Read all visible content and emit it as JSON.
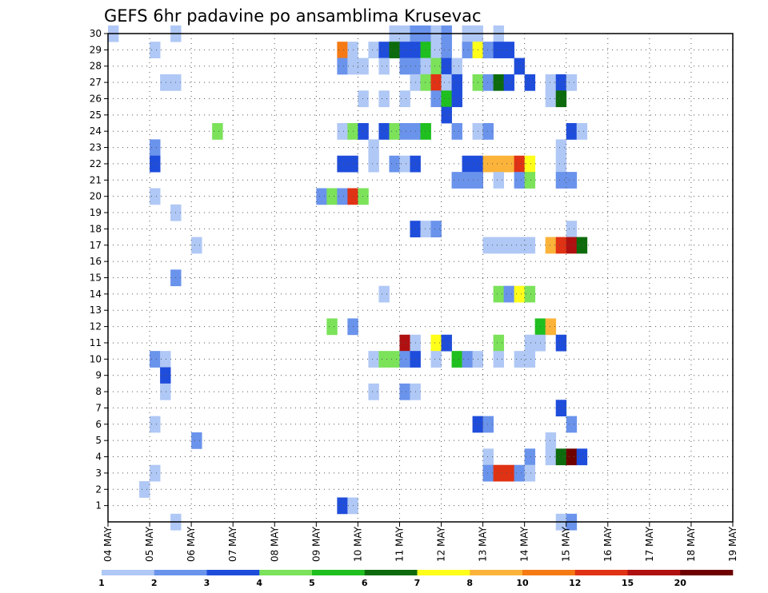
{
  "chart_data": {
    "type": "heatmap",
    "title": "GEFS 6hr padavine po ansamblima Krusevac",
    "x_start": "04 MAY 00Z",
    "x_end": "19 MAY 00Z",
    "x_step_hours": 6,
    "x_tick_labels": [
      "04 MAY",
      "05 MAY",
      "06 MAY",
      "07 MAY",
      "08 MAY",
      "09 MAY",
      "10 MAY",
      "11 MAY",
      "12 MAY",
      "13 MAY",
      "14 MAY",
      "15 MAY",
      "16 MAY",
      "17 MAY",
      "18 MAY",
      "19 MAY"
    ],
    "y_ticks": [
      1,
      2,
      3,
      4,
      5,
      6,
      7,
      8,
      9,
      10,
      11,
      12,
      13,
      14,
      15,
      16,
      17,
      18,
      19,
      20,
      21,
      22,
      23,
      24,
      25,
      26,
      27,
      28,
      29,
      30
    ],
    "ylim": [
      0,
      30
    ],
    "grid": true,
    "colorbar": {
      "labels": [
        "1",
        "2",
        "3",
        "4",
        "5",
        "6",
        "7",
        "8",
        "10",
        "12",
        "15",
        "20"
      ],
      "colors": [
        "#b0c8f5",
        "#6a93ec",
        "#1f4ddb",
        "#7be25a",
        "#1fbf1f",
        "#0d6b0d",
        "#ffff1a",
        "#fbb33a",
        "#f57a14",
        "#e03214",
        "#b01010",
        "#6e0000"
      ]
    },
    "cells": [
      [
        30,
        0,
        0
      ],
      [
        30,
        6,
        0
      ],
      [
        30,
        27,
        0
      ],
      [
        30,
        28,
        0
      ],
      [
        30,
        29,
        1
      ],
      [
        30,
        30,
        1
      ],
      [
        30,
        31,
        0
      ],
      [
        30,
        32,
        1
      ],
      [
        30,
        34,
        0
      ],
      [
        30,
        35,
        0
      ],
      [
        30,
        37,
        0
      ],
      [
        29,
        4,
        0
      ],
      [
        29,
        22,
        8
      ],
      [
        29,
        23,
        0
      ],
      [
        29,
        25,
        0
      ],
      [
        29,
        26,
        2
      ],
      [
        29,
        27,
        5
      ],
      [
        29,
        28,
        2
      ],
      [
        29,
        29,
        2
      ],
      [
        29,
        30,
        4
      ],
      [
        29,
        31,
        0
      ],
      [
        29,
        32,
        1
      ],
      [
        29,
        34,
        1
      ],
      [
        29,
        35,
        6
      ],
      [
        29,
        36,
        1
      ],
      [
        29,
        37,
        2
      ],
      [
        29,
        38,
        2
      ],
      [
        28,
        22,
        1
      ],
      [
        28,
        23,
        0
      ],
      [
        28,
        24,
        0
      ],
      [
        28,
        26,
        0
      ],
      [
        28,
        28,
        1
      ],
      [
        28,
        29,
        1
      ],
      [
        28,
        30,
        0
      ],
      [
        28,
        31,
        3
      ],
      [
        28,
        32,
        2
      ],
      [
        28,
        33,
        0
      ],
      [
        28,
        39,
        2
      ],
      [
        27,
        5,
        0
      ],
      [
        27,
        6,
        0
      ],
      [
        27,
        29,
        0
      ],
      [
        27,
        30,
        3
      ],
      [
        27,
        31,
        9
      ],
      [
        27,
        32,
        0
      ],
      [
        27,
        33,
        2
      ],
      [
        27,
        35,
        3
      ],
      [
        27,
        36,
        1
      ],
      [
        27,
        37,
        5
      ],
      [
        27,
        38,
        2
      ],
      [
        27,
        40,
        2
      ],
      [
        27,
        42,
        0
      ],
      [
        27,
        43,
        2
      ],
      [
        27,
        44,
        0
      ],
      [
        26,
        24,
        0
      ],
      [
        26,
        26,
        0
      ],
      [
        26,
        28,
        0
      ],
      [
        26,
        31,
        1
      ],
      [
        26,
        32,
        4
      ],
      [
        26,
        33,
        2
      ],
      [
        26,
        42,
        0
      ],
      [
        26,
        43,
        5
      ],
      [
        25,
        32,
        2
      ],
      [
        24,
        10,
        3
      ],
      [
        24,
        22,
        0
      ],
      [
        24,
        23,
        3
      ],
      [
        24,
        24,
        2
      ],
      [
        24,
        26,
        2
      ],
      [
        24,
        27,
        3
      ],
      [
        24,
        28,
        1
      ],
      [
        24,
        29,
        1
      ],
      [
        24,
        30,
        4
      ],
      [
        24,
        33,
        1
      ],
      [
        24,
        35,
        0
      ],
      [
        24,
        36,
        1
      ],
      [
        24,
        44,
        2
      ],
      [
        24,
        45,
        0
      ],
      [
        23,
        4,
        1
      ],
      [
        23,
        25,
        0
      ],
      [
        23,
        43,
        0
      ],
      [
        22,
        4,
        2
      ],
      [
        22,
        22,
        2
      ],
      [
        22,
        23,
        2
      ],
      [
        22,
        25,
        0
      ],
      [
        22,
        27,
        1
      ],
      [
        22,
        28,
        0
      ],
      [
        22,
        29,
        2
      ],
      [
        22,
        34,
        2
      ],
      [
        22,
        35,
        2
      ],
      [
        22,
        36,
        7
      ],
      [
        22,
        37,
        7
      ],
      [
        22,
        38,
        7
      ],
      [
        22,
        39,
        9
      ],
      [
        22,
        40,
        6
      ],
      [
        22,
        43,
        0
      ],
      [
        21,
        33,
        1
      ],
      [
        21,
        34,
        1
      ],
      [
        21,
        35,
        1
      ],
      [
        21,
        37,
        0
      ],
      [
        21,
        39,
        1
      ],
      [
        21,
        40,
        3
      ],
      [
        21,
        43,
        1
      ],
      [
        21,
        44,
        1
      ],
      [
        20,
        4,
        0
      ],
      [
        20,
        20,
        1
      ],
      [
        20,
        21,
        3
      ],
      [
        20,
        22,
        1
      ],
      [
        20,
        23,
        9
      ],
      [
        20,
        24,
        3
      ],
      [
        19,
        6,
        0
      ],
      [
        18,
        29,
        2
      ],
      [
        18,
        30,
        0
      ],
      [
        18,
        31,
        1
      ],
      [
        18,
        44,
        0
      ],
      [
        17,
        8,
        0
      ],
      [
        17,
        36,
        0
      ],
      [
        17,
        37,
        0
      ],
      [
        17,
        38,
        0
      ],
      [
        17,
        39,
        0
      ],
      [
        17,
        40,
        0
      ],
      [
        17,
        42,
        7
      ],
      [
        17,
        43,
        9
      ],
      [
        17,
        44,
        10
      ],
      [
        17,
        45,
        5
      ],
      [
        15,
        6,
        1
      ],
      [
        14,
        26,
        0
      ],
      [
        14,
        37,
        3
      ],
      [
        14,
        38,
        1
      ],
      [
        14,
        39,
        6
      ],
      [
        14,
        40,
        3
      ],
      [
        12,
        21,
        3
      ],
      [
        12,
        23,
        1
      ],
      [
        12,
        41,
        4
      ],
      [
        12,
        42,
        7
      ],
      [
        11,
        28,
        10
      ],
      [
        11,
        29,
        0
      ],
      [
        11,
        31,
        6
      ],
      [
        11,
        32,
        2
      ],
      [
        11,
        37,
        3
      ],
      [
        11,
        40,
        0
      ],
      [
        11,
        41,
        0
      ],
      [
        11,
        43,
        2
      ],
      [
        10,
        4,
        1
      ],
      [
        10,
        5,
        0
      ],
      [
        10,
        25,
        0
      ],
      [
        10,
        26,
        3
      ],
      [
        10,
        27,
        3
      ],
      [
        10,
        28,
        1
      ],
      [
        10,
        29,
        2
      ],
      [
        10,
        31,
        0
      ],
      [
        10,
        33,
        4
      ],
      [
        10,
        34,
        1
      ],
      [
        10,
        35,
        0
      ],
      [
        10,
        37,
        0
      ],
      [
        10,
        39,
        0
      ],
      [
        10,
        40,
        0
      ],
      [
        9,
        5,
        2
      ],
      [
        8,
        5,
        0
      ],
      [
        8,
        25,
        0
      ],
      [
        8,
        28,
        1
      ],
      [
        8,
        29,
        0
      ],
      [
        7,
        43,
        2
      ],
      [
        6,
        4,
        0
      ],
      [
        6,
        35,
        2
      ],
      [
        6,
        36,
        1
      ],
      [
        6,
        44,
        1
      ],
      [
        5,
        8,
        1
      ],
      [
        5,
        42,
        0
      ],
      [
        4,
        36,
        0
      ],
      [
        4,
        40,
        1
      ],
      [
        4,
        42,
        0
      ],
      [
        4,
        43,
        5
      ],
      [
        4,
        44,
        11
      ],
      [
        4,
        45,
        2
      ],
      [
        3,
        4,
        0
      ],
      [
        3,
        36,
        1
      ],
      [
        3,
        37,
        9
      ],
      [
        3,
        38,
        9
      ],
      [
        3,
        39,
        1
      ],
      [
        3,
        40,
        0
      ],
      [
        2,
        3,
        0
      ],
      [
        1,
        22,
        2
      ],
      [
        1,
        23,
        0
      ],
      [
        0,
        6,
        0
      ],
      [
        0,
        43,
        0
      ],
      [
        0,
        44,
        1
      ]
    ]
  }
}
